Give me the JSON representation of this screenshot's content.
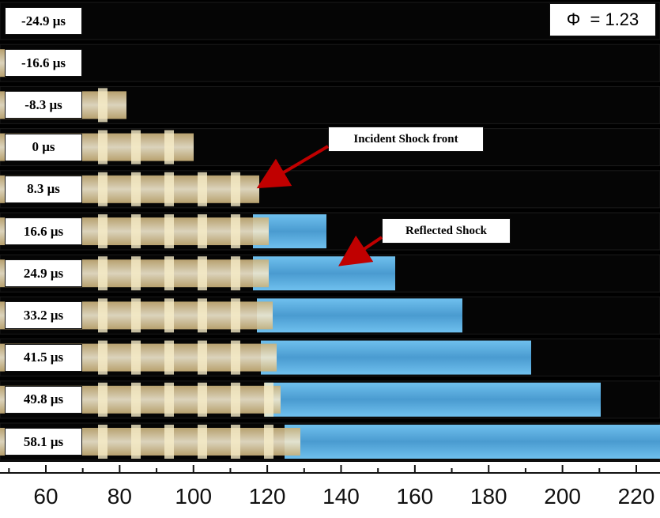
{
  "phi_label": "Φ  = 1.23",
  "frames": [
    {
      "time": "-24.9 μs",
      "flame_end": 0,
      "shock_end": 0
    },
    {
      "time": "-16.6 μs",
      "flame_end": 8,
      "shock_end": 0
    },
    {
      "time": "-8.3 μs",
      "flame_end": 160,
      "shock_end": 0
    },
    {
      "time": "0 μs",
      "flame_end": 245,
      "shock_end": 0
    },
    {
      "time": "8.3 μs",
      "flame_end": 328,
      "shock_end": 0
    },
    {
      "time": "16.6 μs",
      "flame_end": 340,
      "shock_end": 413
    },
    {
      "time": "24.9 μs",
      "flame_end": 340,
      "shock_end": 500
    },
    {
      "time": "33.2 μs",
      "flame_end": 345,
      "shock_end": 585
    },
    {
      "time": "41.5 μs",
      "flame_end": 350,
      "shock_end": 672
    },
    {
      "time": "49.8 μs",
      "flame_end": 355,
      "shock_end": 760
    },
    {
      "time": "58.1 μs",
      "flame_end": 380,
      "shock_end": 835
    }
  ],
  "annotations": {
    "incident": "Incident Shock front",
    "reflected": "Reflected Shock"
  },
  "x_axis": {
    "tick_labels": [
      "60",
      "80",
      "100",
      "120",
      "140",
      "160",
      "180",
      "200",
      "220"
    ]
  },
  "colors": {
    "background": "#000000",
    "flame": "#e8d8a8",
    "shock": "#5fb0e0",
    "arrow": "#c00000"
  }
}
